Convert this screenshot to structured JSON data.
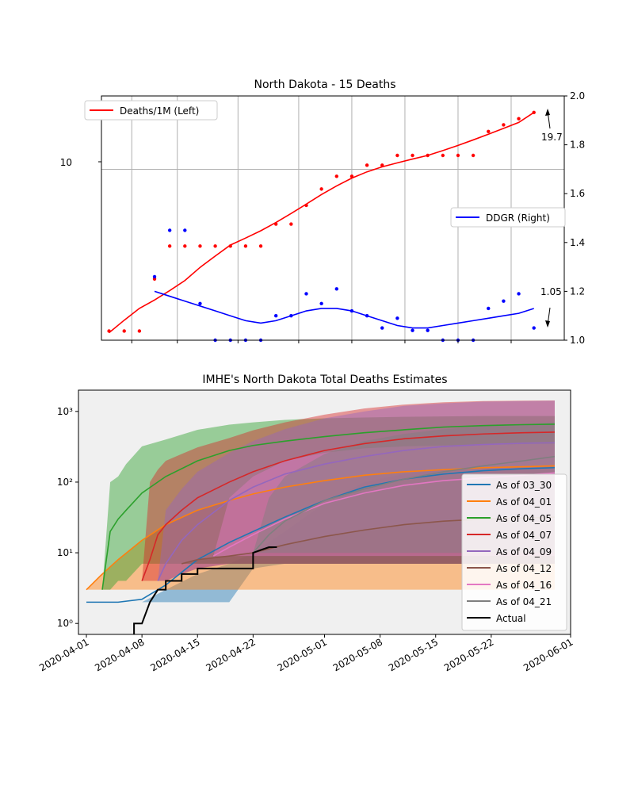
{
  "chart_data": [
    {
      "type": "scatter",
      "title": "North Dakota - 15 Deaths",
      "xlabel": "",
      "ylabel": "",
      "yscale_left": "log",
      "ylim_left": [
        1.3,
        24
      ],
      "ylim_right": [
        1.0,
        2.0
      ],
      "y_right_ticks": [
        "1.0",
        "1.2",
        "1.4",
        "1.6",
        "1.8",
        "2.0"
      ],
      "y_left_tick_label": "10",
      "y_left_tick_value": 10,
      "x_range_days": [
        -1,
        60
      ],
      "grid": true,
      "legend_left": "Deaths/1M (Left)",
      "legend_right": "DDGR (Right)",
      "legend_left_position": "upper-left",
      "legend_right_position": "center-right",
      "annotation_deaths": "19.7",
      "annotation_ddgr": "1.05",
      "deaths_color": "#ff0000",
      "ddgr_color": "#0000ff",
      "series": [
        {
          "name": "Deaths/1M (Left)",
          "points_x": [
            0,
            2,
            4,
            6,
            8,
            10,
            12,
            14,
            16,
            18,
            20,
            22,
            24,
            26,
            28,
            30,
            32,
            34,
            36,
            38,
            40,
            42,
            44,
            46,
            48,
            50,
            52,
            54,
            56
          ],
          "points_y": [
            1.45,
            1.45,
            1.45,
            2.7,
            4.0,
            4.0,
            4.0,
            4.0,
            4.0,
            4.0,
            4.0,
            5.2,
            5.2,
            6.5,
            7.9,
            9.2,
            9.2,
            10.5,
            10.5,
            11.8,
            11.8,
            11.8,
            11.8,
            11.8,
            11.8,
            15.7,
            17.0,
            18.3,
            19.7
          ],
          "line_x": [
            0,
            2,
            4,
            6,
            8,
            10,
            12,
            14,
            16,
            18,
            20,
            22,
            24,
            26,
            28,
            30,
            32,
            34,
            36,
            38,
            40,
            42,
            44,
            46,
            48,
            50,
            52,
            54,
            56
          ],
          "line_y": [
            1.42,
            1.65,
            1.9,
            2.1,
            2.35,
            2.65,
            3.1,
            3.55,
            4.05,
            4.4,
            4.8,
            5.3,
            5.9,
            6.6,
            7.4,
            8.2,
            9.0,
            9.7,
            10.3,
            10.8,
            11.3,
            11.8,
            12.5,
            13.3,
            14.2,
            15.2,
            16.3,
            17.5,
            19.7
          ]
        },
        {
          "name": "DDGR (Right)",
          "points_x": [
            6,
            8,
            10,
            12,
            14,
            16,
            18,
            20,
            22,
            24,
            26,
            28,
            30,
            32,
            34,
            36,
            38,
            40,
            42,
            44,
            46,
            48,
            50,
            52,
            54,
            56
          ],
          "points_y": [
            1.26,
            1.45,
            1.45,
            1.15,
            1.0,
            1.0,
            1.0,
            1.0,
            1.1,
            1.1,
            1.19,
            1.15,
            1.21,
            1.12,
            1.1,
            1.05,
            1.09,
            1.04,
            1.04,
            1.0,
            1.0,
            1.0,
            1.13,
            1.16,
            1.19,
            1.05
          ],
          "line_x": [
            6,
            8,
            10,
            12,
            14,
            16,
            18,
            20,
            22,
            24,
            26,
            28,
            30,
            32,
            34,
            36,
            38,
            40,
            42,
            44,
            46,
            48,
            50,
            52,
            54,
            56
          ],
          "line_y": [
            1.2,
            1.18,
            1.16,
            1.14,
            1.12,
            1.1,
            1.08,
            1.07,
            1.08,
            1.1,
            1.12,
            1.13,
            1.13,
            1.12,
            1.1,
            1.08,
            1.06,
            1.05,
            1.05,
            1.06,
            1.07,
            1.08,
            1.09,
            1.1,
            1.11,
            1.13
          ]
        }
      ]
    },
    {
      "type": "line",
      "title": "IMHE's North Dakota Total Deaths Estimates",
      "xlabel": "",
      "ylabel": "",
      "yscale": "log",
      "ylim": [
        0.7,
        2000
      ],
      "xlim_days": [
        -1,
        61
      ],
      "y_tick_labels": [
        "10⁰",
        "10¹",
        "10²",
        "10³"
      ],
      "y_tick_values": [
        1,
        10,
        100,
        1000
      ],
      "x_tick_labels": [
        "2020-04-01",
        "2020-04-08",
        "2020-04-15",
        "2020-04-22",
        "2020-05-01",
        "2020-05-08",
        "2020-05-15",
        "2020-05-22",
        "2020-06-01"
      ],
      "x_tick_days": [
        0,
        7,
        14,
        21,
        30,
        37,
        44,
        51,
        61
      ],
      "legend_position": "center-right",
      "series": [
        {
          "name": "As of 03_30",
          "color": "#1f77b4",
          "band_color": "#1f77b4",
          "x": [
            0,
            4,
            7,
            10,
            14,
            18,
            21,
            25,
            30,
            35,
            40,
            45,
            50,
            55,
            59
          ],
          "y": [
            2,
            2,
            2.2,
            3.5,
            8,
            14,
            20,
            32,
            55,
            85,
            110,
            130,
            145,
            155,
            160
          ],
          "lower": [
            2,
            2,
            2,
            2,
            2,
            2,
            6,
            7,
            7,
            7,
            7,
            7,
            7,
            7,
            7
          ],
          "upper": [
            2,
            2,
            2,
            3,
            5,
            7,
            10,
            20,
            50,
            100,
            130,
            150,
            160,
            165,
            170
          ]
        },
        {
          "name": "As of 04_01",
          "color": "#ff7f0e",
          "band_color": "#ff7f0e",
          "x": [
            0,
            2,
            4,
            7,
            10,
            14,
            18,
            21,
            25,
            30,
            35,
            40,
            45,
            50,
            55,
            59
          ],
          "y": [
            3,
            5,
            8,
            15,
            25,
            40,
            55,
            68,
            85,
            105,
            125,
            140,
            150,
            160,
            165,
            170
          ],
          "lower": [
            3,
            3,
            3,
            3,
            3,
            3,
            3,
            3,
            3,
            3,
            3,
            3,
            3,
            3,
            3,
            3
          ],
          "upper": [
            3,
            5,
            8,
            15,
            25,
            40,
            55,
            68,
            85,
            105,
            125,
            140,
            150,
            160,
            165,
            170
          ]
        },
        {
          "name": "As of 04_05",
          "color": "#2ca02c",
          "band_color": "#2ca02c",
          "x": [
            2,
            3,
            4,
            5,
            7,
            10,
            14,
            18,
            21,
            25,
            30,
            35,
            40,
            45,
            50,
            55,
            59
          ],
          "y": [
            3,
            20,
            30,
            40,
            70,
            120,
            200,
            280,
            330,
            380,
            440,
            500,
            550,
            600,
            630,
            650,
            660
          ],
          "lower": [
            3,
            3,
            4,
            4,
            7,
            7,
            7,
            7,
            7,
            7,
            7,
            7,
            7,
            7,
            7,
            7,
            7
          ],
          "upper": [
            3,
            100,
            120,
            180,
            320,
            400,
            550,
            650,
            700,
            760,
            800,
            820,
            840,
            850,
            860,
            860,
            860
          ]
        },
        {
          "name": "As of 04_07",
          "color": "#d62728",
          "band_color": "#d62728",
          "x": [
            7,
            8,
            9,
            10,
            12,
            14,
            18,
            21,
            25,
            30,
            35,
            40,
            45,
            50,
            55,
            59
          ],
          "y": [
            4,
            8,
            18,
            25,
            40,
            60,
            100,
            140,
            200,
            280,
            350,
            410,
            450,
            480,
            500,
            510
          ],
          "lower": [
            4,
            4,
            4,
            4,
            5,
            6,
            7,
            7,
            7,
            7,
            7,
            7,
            7,
            7,
            7,
            7
          ],
          "upper": [
            4,
            100,
            150,
            200,
            250,
            310,
            420,
            540,
            700,
            900,
            1100,
            1250,
            1350,
            1400,
            1420,
            1430
          ]
        },
        {
          "name": "As of 04_09",
          "color": "#9467bd",
          "band_color": "#9467bd",
          "x": [
            9,
            10,
            12,
            14,
            18,
            21,
            25,
            30,
            35,
            40,
            45,
            50,
            55,
            59
          ],
          "y": [
            4,
            7,
            15,
            25,
            55,
            85,
            130,
            180,
            230,
            280,
            320,
            340,
            355,
            360
          ],
          "lower": [
            4,
            4,
            5,
            6,
            7,
            7,
            7,
            7,
            7,
            7,
            7,
            7,
            7,
            7
          ],
          "upper": [
            4,
            40,
            80,
            140,
            260,
            380,
            560,
            800,
            1000,
            1200,
            1300,
            1380,
            1400,
            1420
          ]
        },
        {
          "name": "As of 04_12",
          "color": "#8c564b",
          "band_color": "#8c564b",
          "x": [
            12,
            14,
            18,
            21,
            25,
            30,
            35,
            40,
            45,
            50,
            55,
            59
          ],
          "y": [
            7,
            8,
            9,
            10,
            13,
            17,
            21,
            25,
            28,
            30,
            31,
            32
          ],
          "lower": [
            7,
            7,
            7,
            7,
            7,
            7,
            7,
            7,
            7,
            7,
            7,
            7
          ],
          "upper": [
            7,
            8,
            9,
            10,
            13,
            17,
            21,
            25,
            28,
            30,
            31,
            32
          ]
        },
        {
          "name": "As of 04_16",
          "color": "#e377c2",
          "band_color": "#e377c2",
          "x": [
            16,
            18,
            21,
            25,
            30,
            35,
            40,
            45,
            50,
            55,
            59
          ],
          "y": [
            9,
            12,
            18,
            30,
            50,
            70,
            90,
            105,
            115,
            125,
            135
          ],
          "lower": [
            9,
            9,
            9,
            9,
            9,
            9,
            9,
            9,
            9,
            9,
            9
          ],
          "upper": [
            9,
            60,
            120,
            200,
            260,
            300,
            320,
            330,
            340,
            345,
            350
          ]
        },
        {
          "name": "As of 04_21",
          "color": "#7f7f7f",
          "band_color": "#7f7f7f",
          "x": [
            21,
            23,
            25,
            30,
            35,
            40,
            45,
            50,
            55,
            59
          ],
          "y": [
            10,
            18,
            28,
            55,
            80,
            110,
            140,
            170,
            200,
            230
          ],
          "lower": [
            10,
            10,
            10,
            10,
            10,
            10,
            10,
            10,
            10,
            10
          ],
          "upper": [
            10,
            60,
            120,
            250,
            380,
            480,
            560,
            620,
            660,
            700
          ]
        },
        {
          "name": "Actual",
          "color": "#000000",
          "x": [
            6,
            6,
            7,
            7,
            8,
            9,
            10,
            10,
            11,
            12,
            12,
            13,
            14,
            14,
            16,
            16,
            21,
            21,
            22,
            23,
            24
          ],
          "y": [
            0.6,
            1,
            1,
            1,
            2,
            3,
            3,
            4,
            4,
            4,
            5,
            5,
            5,
            6,
            6,
            6,
            6,
            10,
            11,
            12,
            12
          ]
        }
      ]
    }
  ]
}
